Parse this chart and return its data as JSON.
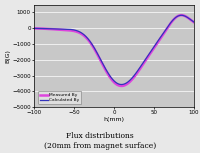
{
  "title_line1": "Flux distributions",
  "title_line2": "(20mm from magnet surface)",
  "xlabel": "h(mm)",
  "ylabel": "B(G)",
  "xlim": [
    -100,
    100
  ],
  "ylim": [
    -5000,
    1500
  ],
  "yticks": [
    1000,
    0,
    -1000,
    -2000,
    -3000,
    -4000,
    -5000
  ],
  "xticks": [
    -100,
    -50,
    0,
    50,
    100
  ],
  "fig_bg_color": "#e8e8e8",
  "ax_bg_color": "#c8c8c8",
  "line_color_calc": "#3333bb",
  "line_color_meas": "#dd44dd",
  "legend_labels": [
    "Calculated By",
    "Measured By"
  ],
  "title_fontsize": 5.5,
  "axis_fontsize": 4.5,
  "tick_fontsize": 4.0,
  "gauss_params": {
    "peak1_amp": 1100,
    "peak1_mu": -28,
    "peak1_sig": 20,
    "trough_amp": -3800,
    "trough_mu": 5,
    "trough_sig": 30,
    "peak2_amp": 950,
    "peak2_mu": 82,
    "peak2_sig": 14
  }
}
